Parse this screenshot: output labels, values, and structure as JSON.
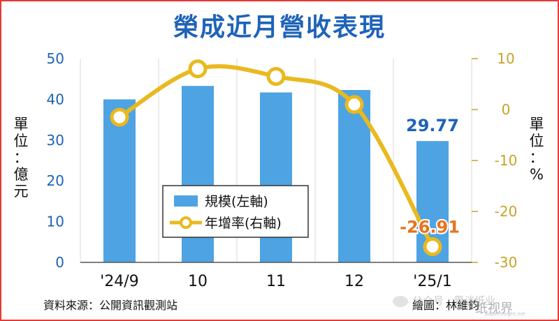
{
  "title": "榮成近月營收表現",
  "chart_data": {
    "type": "bar+line",
    "categories": [
      "'24/9",
      "10",
      "11",
      "12",
      "'25/1"
    ],
    "series": [
      {
        "name": "規模(左軸)",
        "type": "bar",
        "axis": "left",
        "values": [
          40.0,
          43.3,
          41.7,
          42.3,
          29.77
        ]
      },
      {
        "name": "年增率(右軸)",
        "type": "line",
        "axis": "right",
        "values": [
          -1.5,
          8.0,
          6.5,
          1.0,
          -26.91
        ]
      }
    ],
    "left_axis": {
      "label": "單位：億元",
      "ticks": [
        0,
        10,
        20,
        30,
        40,
        50
      ],
      "ylim": [
        0,
        50
      ]
    },
    "right_axis": {
      "label": "單位：%",
      "ticks": [
        10,
        0,
        -10,
        -20,
        -30
      ],
      "ylim": [
        -30,
        10
      ]
    },
    "data_labels": [
      {
        "series": 0,
        "index": 4,
        "text": "29.77"
      },
      {
        "series": 1,
        "index": 4,
        "text": "-26.91"
      }
    ],
    "legend_position": "center-left",
    "colors": {
      "bar": "#4ea3e3",
      "line": "#e9b91f",
      "left_axis_text": "#1e63b8",
      "right_axis_text": "#c9a227",
      "line_label": "#e8741c"
    }
  },
  "footer": {
    "source": "資料來源：公開資訊觀測站",
    "credit": "繪圖：林維鈞"
  },
  "watermark": {
    "text": "公众号 · 界谈纸业",
    "logo": "纸视界",
    "url": "paperinsight.net"
  }
}
